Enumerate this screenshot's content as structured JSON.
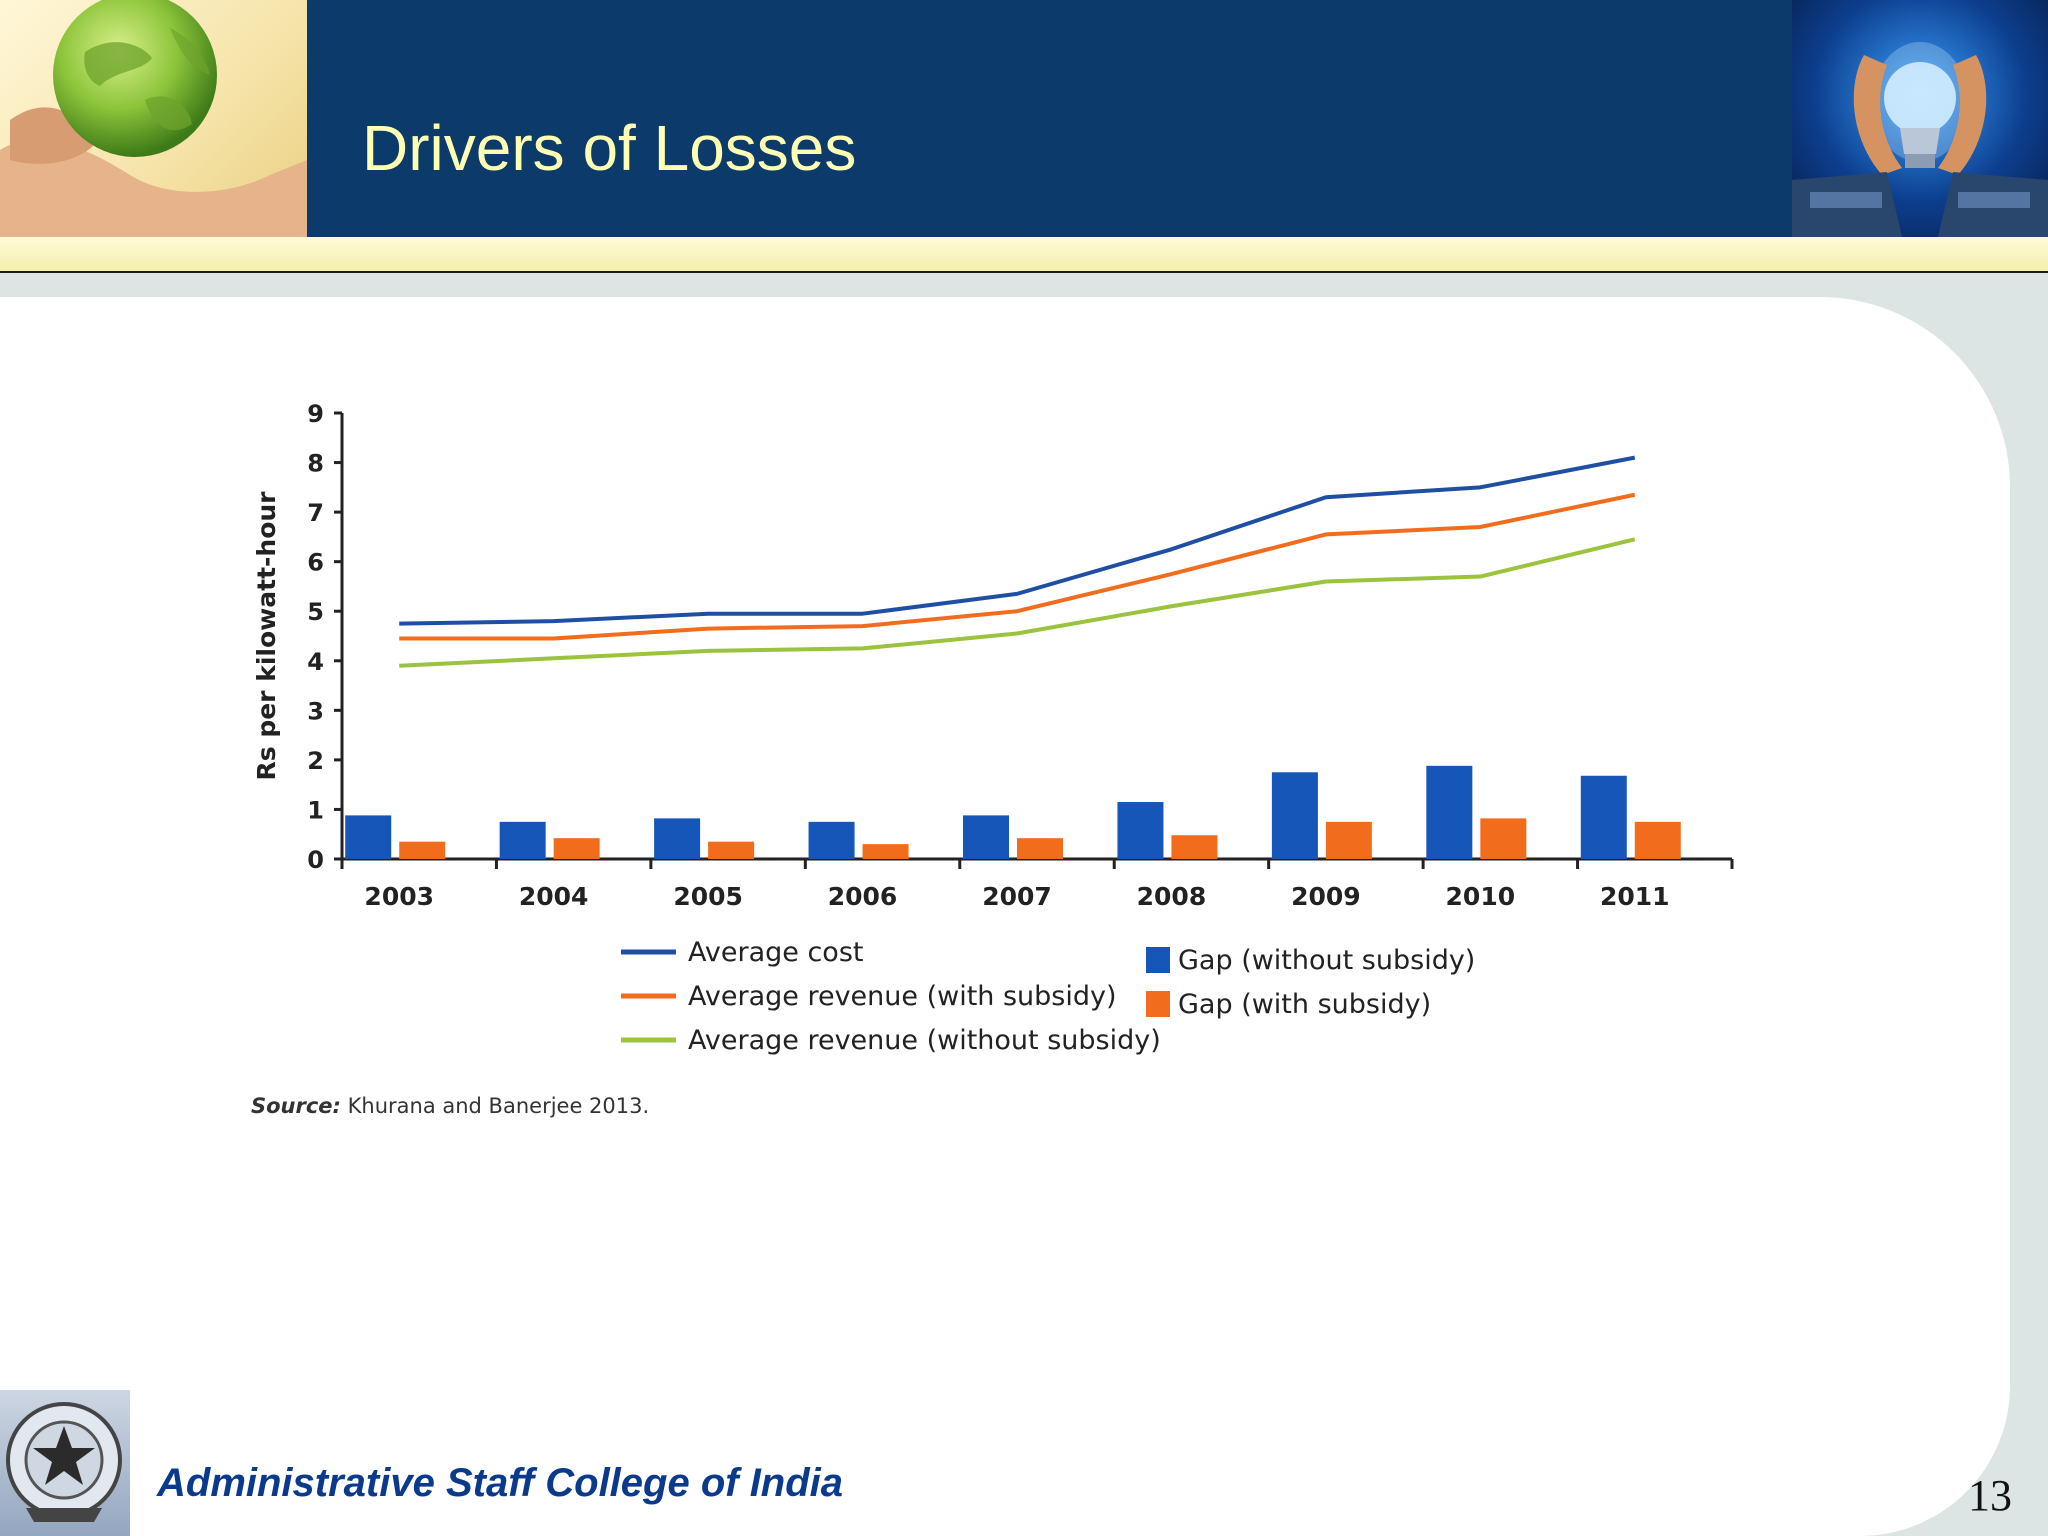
{
  "slide": {
    "title": "Drivers of Losses",
    "footer": "Administrative Staff College of India",
    "page_number": "13"
  },
  "colors": {
    "header": "#0b3a6b",
    "title": "#ffffb3",
    "average_cost": "#1f4fa3",
    "avg_rev_with_subsidy": "#f26c1d",
    "avg_rev_without_subsidy": "#9bc33d",
    "gap_without_subsidy": "#1556b8",
    "gap_with_subsidy": "#f26c1d",
    "footer_text": "#0b3a8c"
  },
  "chart_data": {
    "type": "bar",
    "title": "",
    "xlabel": "",
    "ylabel": "Rs per kilowatt-hour",
    "categories": [
      "2003",
      "2004",
      "2005",
      "2006",
      "2007",
      "2008",
      "2009",
      "2010",
      "2011"
    ],
    "ylim": [
      0,
      9
    ],
    "yticks": [
      "0",
      "1",
      "2",
      "3",
      "4",
      "5",
      "6",
      "7",
      "8",
      "9"
    ],
    "grid": false,
    "legend_placement": "bottom",
    "line_series": [
      {
        "name": "Average cost",
        "values": [
          4.75,
          4.8,
          4.95,
          4.95,
          5.35,
          6.25,
          7.3,
          7.5,
          8.1
        ]
      },
      {
        "name": "Average revenue (with subsidy)",
        "values": [
          4.45,
          4.45,
          4.65,
          4.7,
          5.0,
          5.75,
          6.55,
          6.7,
          7.35
        ]
      },
      {
        "name": "Average revenue (without subsidy)",
        "values": [
          3.9,
          4.05,
          4.2,
          4.25,
          4.55,
          5.1,
          5.6,
          5.7,
          6.45
        ]
      }
    ],
    "bar_series": [
      {
        "name": "Gap (without subsidy)",
        "values": [
          0.88,
          0.75,
          0.82,
          0.75,
          0.88,
          1.15,
          1.75,
          1.88,
          1.68
        ]
      },
      {
        "name": "Gap (with subsidy)",
        "values": [
          0.35,
          0.42,
          0.35,
          0.3,
          0.42,
          0.48,
          0.75,
          0.82,
          0.75
        ]
      }
    ],
    "source_label": "Source:",
    "source_text": " Khurana and Banerjee 2013."
  }
}
